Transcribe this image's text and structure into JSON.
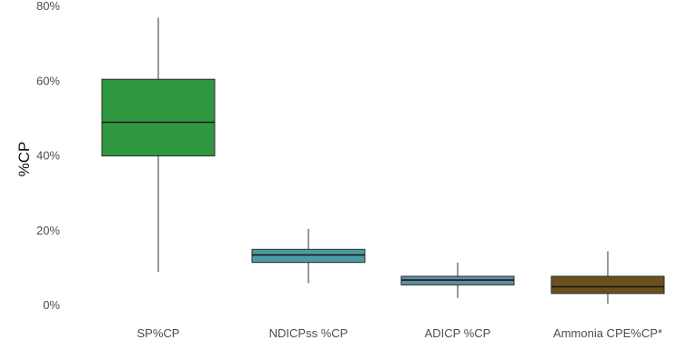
{
  "chart_data": {
    "type": "box",
    "title": "",
    "xlabel": "",
    "ylabel": "%CP",
    "ylim": [
      0,
      80
    ],
    "yticks": [
      0,
      20,
      40,
      60,
      80
    ],
    "ytick_labels": [
      "0%",
      "20%",
      "40%",
      "60%",
      "80%"
    ],
    "grid": false,
    "legend": "none",
    "categories": [
      "SP%CP",
      "NDICPss %CP",
      "ADICP %CP",
      "Ammonia CPE%CP*"
    ],
    "boxes": [
      {
        "category": "SP%CP",
        "whisker_low": 9,
        "q1": 40,
        "median": 49,
        "q3": 60.5,
        "whisker_high": 77,
        "color": "#2e9740"
      },
      {
        "category": "NDICPss %CP",
        "whisker_low": 6,
        "q1": 11.5,
        "median": 13.5,
        "q3": 15,
        "whisker_high": 20.5,
        "color": "#4c9ba0"
      },
      {
        "category": "ADICP %CP",
        "whisker_low": 2,
        "q1": 5.5,
        "median": 6.8,
        "q3": 7.8,
        "whisker_high": 11.5,
        "color": "#5f8da2"
      },
      {
        "category": "Ammonia CPE%CP*",
        "whisker_low": 0.5,
        "q1": 3.2,
        "median": 5,
        "q3": 7.8,
        "whisker_high": 14.5,
        "color": "#6b501f"
      }
    ],
    "colors": {
      "outline": "#2b2b2b",
      "whisker": "#333333",
      "median": "#1a1a1a"
    }
  }
}
